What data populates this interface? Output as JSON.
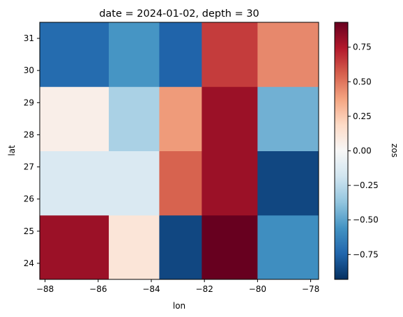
{
  "chart_data": {
    "type": "heatmap",
    "title": "date = 2024-01-02, depth = 30",
    "xlabel": "lon",
    "ylabel": "lat",
    "colorbar_label": "zos",
    "colormap": "RdBu_r",
    "x_ticks": [
      "-88",
      "-86",
      "-84",
      "-82",
      "-80",
      "-78"
    ],
    "x_tick_values": [
      -88,
      -86,
      -84,
      -82,
      -80,
      -78
    ],
    "y_ticks": [
      "24",
      "25",
      "26",
      "27",
      "28",
      "29",
      "30",
      "31"
    ],
    "y_tick_values": [
      24,
      25,
      26,
      27,
      28,
      29,
      30,
      31
    ],
    "colorbar_ticks": [
      "0.75",
      "0.50",
      "0.25",
      "0.00",
      "−0.25",
      "−0.50",
      "−0.75"
    ],
    "colorbar_tick_values": [
      0.75,
      0.5,
      0.25,
      0.0,
      -0.25,
      -0.5,
      -0.75
    ],
    "vmin": -0.93,
    "vmax": 0.93,
    "xlim": [
      -88.2,
      -77.7
    ],
    "ylim": [
      23.5,
      31.5
    ],
    "lon_edges": [
      -88.2,
      -85.6,
      -83.7,
      -82.1,
      -80.0,
      -77.7
    ],
    "lat_edges": [
      23.5,
      25.5,
      27.5,
      29.5,
      31.5
    ],
    "rows": [
      {
        "lat_band": "23.5-25.5",
        "values": [
          0.8,
          0.12,
          -0.85,
          0.93,
          -0.58
        ]
      },
      {
        "lat_band": "25.5-27.5",
        "values": [
          -0.14,
          -0.14,
          0.55,
          0.8,
          -0.85
        ]
      },
      {
        "lat_band": "27.5-29.5",
        "values": [
          0.06,
          -0.3,
          0.4,
          0.8,
          -0.45
        ]
      },
      {
        "lat_band": "29.5-31.5",
        "values": [
          -0.72,
          -0.55,
          -0.75,
          0.65,
          0.45
        ]
      }
    ]
  }
}
